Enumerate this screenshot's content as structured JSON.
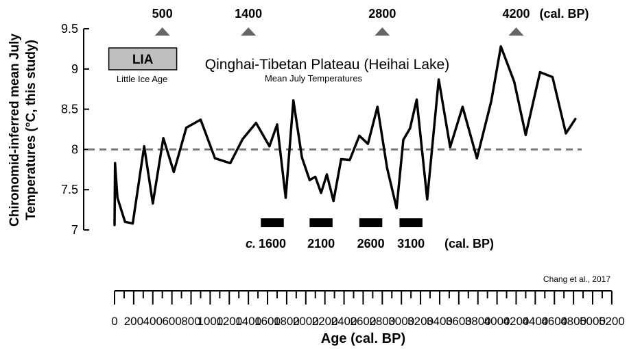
{
  "chart_data": {
    "type": "line",
    "title": "Qinghai-Tibetan Plateau (Heihai Lake)",
    "subtitle": "Mean July Temperatures",
    "ylabel_line1": "Chironomid-inferred mean July",
    "ylabel_line2": "Temperatures (°C, this study)",
    "xlabel": "Age (cal. BP)",
    "credit": "Chang et al., 2017",
    "ylim": [
      7,
      9.5
    ],
    "xlim": [
      0,
      5200
    ],
    "y_ticks": [
      "7",
      "7.5",
      "8",
      "8.5",
      "9",
      "9.5"
    ],
    "x_ticks": [
      "0",
      "200",
      "400",
      "600",
      "800",
      "1000",
      "1200",
      "1400",
      "1600",
      "1800",
      "2000",
      "2200",
      "2400",
      "2600",
      "2800",
      "3000",
      "3200",
      "3400",
      "3600",
      "3800",
      "4000",
      "4200",
      "4400",
      "4600",
      "4800",
      "5000",
      "5200"
    ],
    "reference_line": {
      "y": 8.0,
      "style": "dashed"
    },
    "series": [
      {
        "x": [
          0,
          5,
          30,
          110,
          190,
          310,
          400,
          510,
          620,
          750,
          900,
          1050,
          1210,
          1340,
          1480,
          1620,
          1700,
          1790,
          1870,
          1960,
          2040,
          2100,
          2160,
          2220,
          2290,
          2370,
          2460,
          2560,
          2650,
          2750,
          2850,
          2950,
          3020,
          3090,
          3160,
          3270,
          3390,
          3510,
          3640,
          3790,
          3940,
          4040,
          4180,
          4300,
          4450,
          4580,
          4720,
          4820
        ],
        "values": [
          7.06,
          7.83,
          7.4,
          7.1,
          7.08,
          8.04,
          7.33,
          8.14,
          7.72,
          8.27,
          8.37,
          7.89,
          7.83,
          8.13,
          8.33,
          8.04,
          8.31,
          7.4,
          8.61,
          7.9,
          7.62,
          7.66,
          7.46,
          7.69,
          7.36,
          7.88,
          7.87,
          8.17,
          8.07,
          8.53,
          7.77,
          7.27,
          8.12,
          8.26,
          8.62,
          7.38,
          8.87,
          8.03,
          8.53,
          7.89,
          8.6,
          9.28,
          8.84,
          8.18,
          8.96,
          8.9,
          8.2,
          8.38
        ]
      }
    ],
    "top_events": [
      {
        "label": "500",
        "x": 500
      },
      {
        "label": "1400",
        "x": 1400
      },
      {
        "label": "2800",
        "x": 2800
      },
      {
        "label": "4200",
        "x": 4200
      }
    ],
    "top_unit": "(cal. BP)",
    "bottom_events": [
      {
        "prefix": "c.",
        "label": "1600",
        "start": 1530,
        "end": 1770
      },
      {
        "prefix": "",
        "label": "2100",
        "start": 2040,
        "end": 2280
      },
      {
        "prefix": "",
        "label": "2600",
        "start": 2560,
        "end": 2800
      },
      {
        "prefix": "",
        "label": "3100",
        "start": 2980,
        "end": 3220
      }
    ],
    "bottom_unit": "(cal. BP)",
    "lia": {
      "label": "LIA",
      "caption": "Little Ice Age",
      "start": -60,
      "end": 650
    },
    "colors": {
      "line": "#000000",
      "dashed": "#7a7a7a",
      "triangle": "#666666",
      "lia_fill": "#bfbfbf"
    }
  }
}
